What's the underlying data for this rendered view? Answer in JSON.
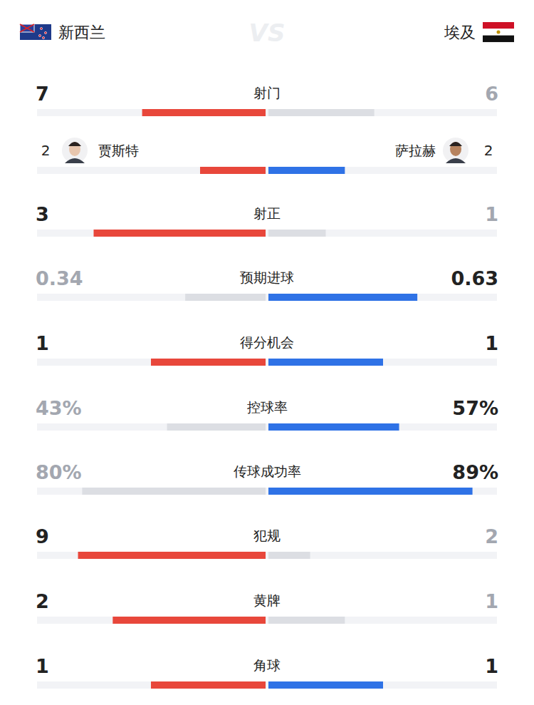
{
  "chart_data": {
    "type": "bar",
    "orientation": "horizontal",
    "data_labels": true,
    "vs_label": "VS",
    "categories": [
      "射门",
      null,
      "射正",
      "预期进球",
      "得分机会",
      "控球率",
      "传球成功率",
      "犯规",
      "黄牌",
      "角球"
    ],
    "xlim": [
      0,
      100
    ],
    "series": [
      {
        "name": "新西兰",
        "color": "#e8473b",
        "values": [
          7,
          2,
          3,
          0.34,
          1,
          43,
          80,
          9,
          2,
          1
        ],
        "value_labels": [
          null,
          null,
          null,
          null,
          null,
          "43%",
          "80%",
          null,
          null,
          null
        ]
      },
      {
        "name": "埃及",
        "color": "#2f72e6",
        "values": [
          6,
          2,
          1,
          0.63,
          1,
          57,
          89,
          2,
          1,
          1
        ],
        "value_labels": [
          null,
          null,
          null,
          null,
          null,
          "57%",
          "89%",
          null,
          null,
          null
        ]
      }
    ],
    "annotations": [
      {
        "text": "贾斯特",
        "series": 0,
        "index": 1
      },
      {
        "text": "萨拉赫",
        "series": 1,
        "index": 1
      }
    ]
  }
}
